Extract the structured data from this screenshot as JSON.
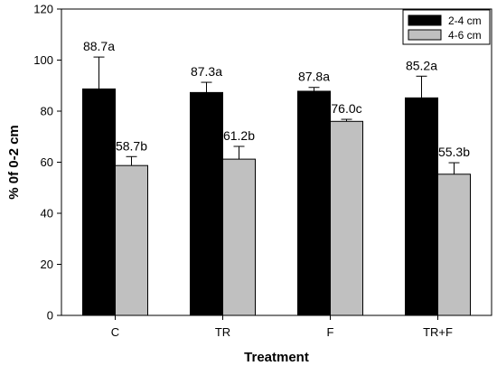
{
  "chart_data": {
    "type": "bar",
    "title": "",
    "xlabel": "Treatment",
    "ylabel": "% 0f 0-2 cm",
    "categories": [
      "C",
      "TR",
      "F",
      "TR+F"
    ],
    "ylim": [
      0,
      120
    ],
    "yticks": [
      0,
      20,
      40,
      60,
      80,
      100,
      120
    ],
    "grid": false,
    "legend_position": "top-right",
    "series": [
      {
        "name": "2-4 cm",
        "color": "#000000",
        "values": [
          88.7,
          87.3,
          87.8,
          85.2
        ],
        "errors": [
          12.5,
          4.0,
          1.5,
          8.5
        ],
        "labels": [
          "88.7a",
          "87.3a",
          "87.8a",
          "85.2a"
        ]
      },
      {
        "name": "4-6 cm",
        "color": "#c0c0c0",
        "values": [
          58.7,
          61.2,
          76.0,
          55.3
        ],
        "errors": [
          3.5,
          5.0,
          0.8,
          4.5
        ],
        "labels": [
          "58.7b",
          "61.2b",
          "76.0c",
          "55.3b"
        ]
      }
    ]
  }
}
